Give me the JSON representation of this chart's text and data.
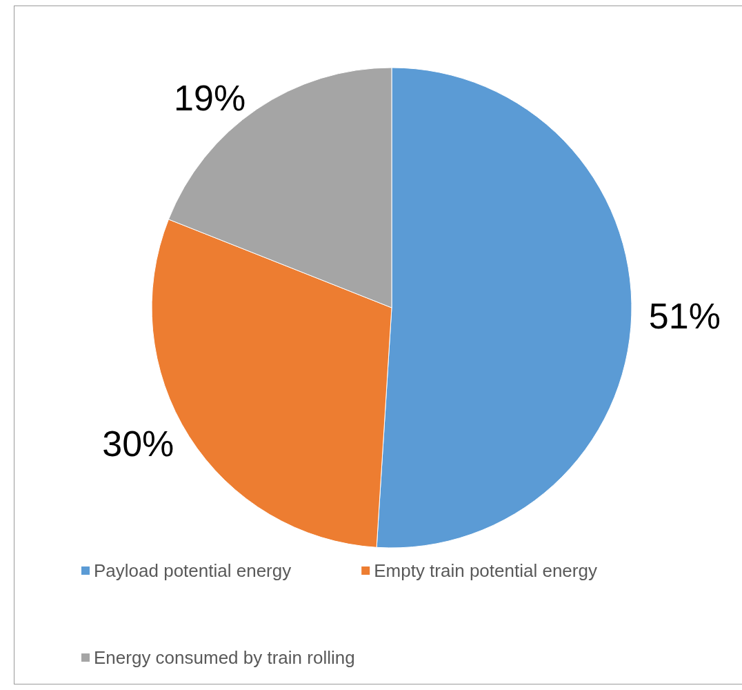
{
  "chart_data": {
    "type": "pie",
    "categories": [
      "Payload potential energy",
      "Empty train potential energy",
      "Energy consumed by train rolling"
    ],
    "values": [
      51,
      30,
      19
    ],
    "colors": [
      "#5b9bd5",
      "#ed7d31",
      "#a5a5a5"
    ],
    "value_labels": [
      "51%",
      "30%",
      "19%"
    ],
    "legend": "bottom"
  }
}
